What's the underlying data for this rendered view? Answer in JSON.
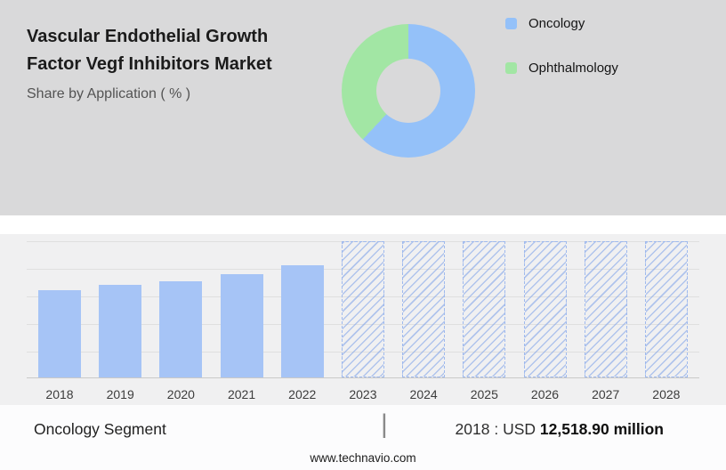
{
  "header": {
    "title_line1": "Vascular Endothelial Growth",
    "title_line2": "Factor Vegf Inhibitors Market",
    "subtitle": "Share by Application ( % )"
  },
  "chart_data": [
    {
      "type": "pie",
      "donut": true,
      "title": "Share by Application ( % )",
      "labels": [
        "Oncology",
        "Ophthalmology"
      ],
      "values": [
        62,
        38
      ],
      "colors": [
        "#94c1f9",
        "#a2e6a4"
      ],
      "legend_position": "right"
    },
    {
      "type": "bar",
      "categories": [
        "2018",
        "2019",
        "2020",
        "2021",
        "2022",
        "2023",
        "2024",
        "2025",
        "2026",
        "2027",
        "2028"
      ],
      "values": [
        12518.9,
        13280,
        13790,
        14810,
        16090,
        null,
        null,
        null,
        null,
        null,
        null
      ],
      "forecast": [
        false,
        false,
        false,
        false,
        false,
        true,
        true,
        true,
        true,
        true,
        true
      ],
      "bar_color": "#a6c4f6",
      "forecast_style": "hatched-placeholder-full-height",
      "ylim": [
        0,
        19500
      ],
      "xlabel": "",
      "ylabel": "",
      "grid": true,
      "labeled_value": "2018 : USD 12,518.90 million"
    }
  ],
  "footer": {
    "segment_label": "Oncology Segment",
    "separator": "|",
    "value_prefix": "2018 : USD",
    "value_bold": "12,518.90 million",
    "website": "www.technavio.com"
  }
}
